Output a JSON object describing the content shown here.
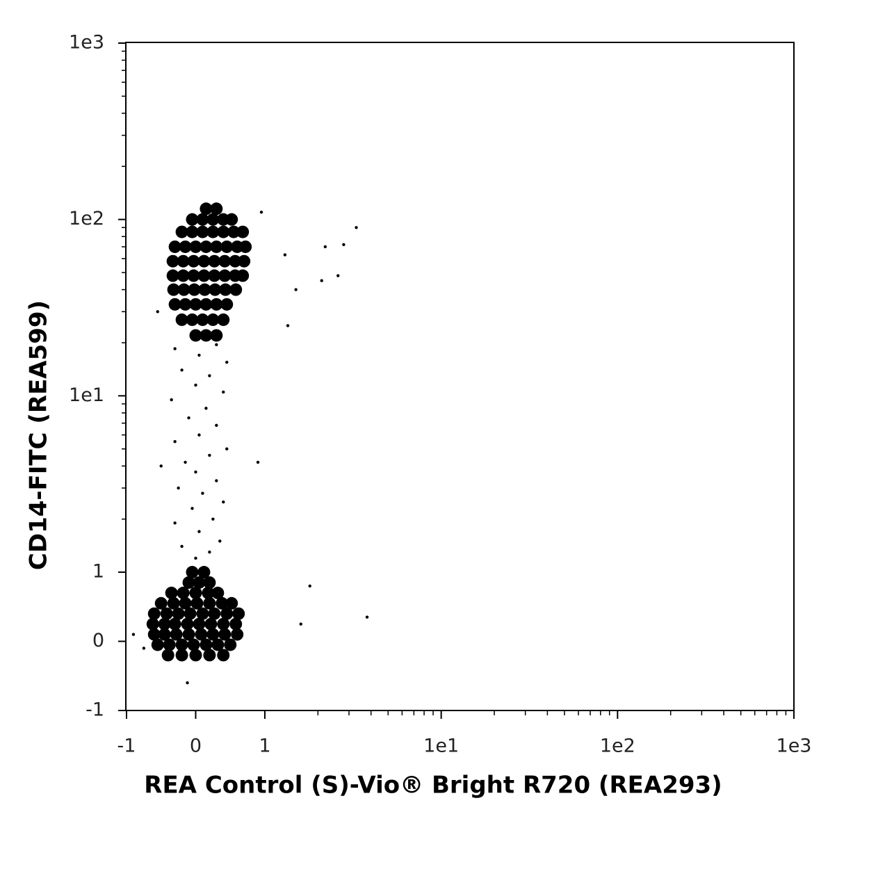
{
  "chart_data": {
    "type": "scatter",
    "x_label": "REA Control (S)-Vio® Bright R720 (REA293)",
    "y_label": "CD14-FITC (REA599)",
    "xscale": "biexponential",
    "yscale": "biexponential",
    "xlim": [
      -1,
      1000
    ],
    "ylim": [
      -1,
      1000
    ],
    "xticks": [
      -1,
      0,
      1,
      {
        "value": 10,
        "label": "1e1"
      },
      {
        "value": 100,
        "label": "1e2"
      },
      {
        "value": 1000,
        "label": "1e3"
      }
    ],
    "yticks": [
      -1,
      0,
      1,
      {
        "value": 10,
        "label": "1e1"
      },
      {
        "value": 100,
        "label": "1e2"
      },
      {
        "value": 1000,
        "label": "1e3"
      }
    ],
    "minor_ticks": [
      2,
      3,
      4,
      5,
      6,
      7,
      8,
      9,
      20,
      30,
      40,
      50,
      60,
      70,
      80,
      90,
      200,
      300,
      400,
      500,
      600,
      700,
      800,
      900
    ],
    "series": [
      {
        "color": "#000000",
        "marker_size": 9,
        "x": [
          -0.4,
          -0.2,
          0,
          0.2,
          0.4,
          -0.55,
          -0.38,
          -0.2,
          -0.03,
          0.15,
          0.32,
          0.5,
          -0.6,
          -0.45,
          -0.28,
          -0.1,
          0.08,
          0.25,
          0.42,
          0.6,
          -0.62,
          -0.45,
          -0.3,
          -0.12,
          0.05,
          0.22,
          0.4,
          0.58,
          -0.6,
          -0.42,
          -0.25,
          -0.08,
          0.1,
          0.27,
          0.45,
          0.62,
          -0.5,
          -0.32,
          -0.15,
          0.02,
          0.2,
          0.38,
          0.52,
          -0.35,
          -0.18,
          0,
          0.18,
          0.32,
          -0.1,
          0.05,
          0.2,
          -0.05,
          0.12,
          0,
          0.15,
          0.3,
          -0.2,
          -0.05,
          0.1,
          0.25,
          0.4,
          -0.3,
          -0.15,
          0,
          0.15,
          0.3,
          0.45,
          -0.32,
          -0.17,
          -0.02,
          0.13,
          0.28,
          0.43,
          0.58,
          -0.33,
          -0.18,
          -0.03,
          0.12,
          0.27,
          0.42,
          0.57,
          0.68,
          -0.33,
          -0.18,
          -0.03,
          0.12,
          0.27,
          0.42,
          0.57,
          0.7,
          -0.3,
          -0.15,
          0,
          0.15,
          0.3,
          0.45,
          0.6,
          0.72,
          -0.2,
          -0.05,
          0.1,
          0.25,
          0.4,
          0.55,
          0.68,
          -0.05,
          0.1,
          0.25,
          0.4,
          0.52,
          0.15,
          0.3
        ],
        "y": [
          -0.2,
          -0.2,
          -0.2,
          -0.2,
          -0.2,
          -0.05,
          -0.05,
          -0.05,
          -0.05,
          -0.05,
          -0.05,
          -0.05,
          0.1,
          0.1,
          0.1,
          0.1,
          0.1,
          0.1,
          0.1,
          0.1,
          0.25,
          0.25,
          0.25,
          0.25,
          0.25,
          0.25,
          0.25,
          0.25,
          0.4,
          0.4,
          0.4,
          0.4,
          0.4,
          0.4,
          0.4,
          0.4,
          0.55,
          0.55,
          0.55,
          0.55,
          0.55,
          0.55,
          0.55,
          0.7,
          0.7,
          0.7,
          0.7,
          0.7,
          0.85,
          0.85,
          0.85,
          1,
          1,
          22,
          22,
          22,
          27,
          27,
          27,
          27,
          27,
          33,
          33,
          33,
          33,
          33,
          33,
          40,
          40,
          40,
          40,
          40,
          40,
          40,
          48,
          48,
          48,
          48,
          48,
          48,
          48,
          48,
          58,
          58,
          58,
          58,
          58,
          58,
          58,
          58,
          70,
          70,
          70,
          70,
          70,
          70,
          70,
          70,
          85,
          85,
          85,
          85,
          85,
          85,
          85,
          100,
          100,
          100,
          100,
          100,
          115,
          115
        ]
      },
      {
        "color": "#000000",
        "marker_size": 2.2,
        "x": [
          0,
          0.2,
          -0.2,
          0.35,
          0.05,
          -0.3,
          0.25,
          -0.05,
          0.4,
          0.1,
          -0.25,
          0.3,
          0,
          -0.15,
          0.2,
          0.45,
          -0.3,
          0.05,
          0.3,
          -0.1,
          0.15,
          -0.35,
          0.4,
          0,
          0.2,
          -0.2,
          0.45,
          0.05,
          -0.3,
          0.3,
          1.3,
          2.2,
          2.8,
          3.3,
          2.1,
          2.6,
          1.5,
          -0.5,
          0.9,
          1.8,
          3.8,
          1.6,
          -0.9,
          -0.75,
          -0.12,
          0.95,
          -0.55,
          1.35
        ],
        "y": [
          1.2,
          1.3,
          1.4,
          1.5,
          1.7,
          1.9,
          2,
          2.3,
          2.5,
          2.8,
          3,
          3.3,
          3.7,
          4.2,
          4.6,
          5,
          5.5,
          6,
          6.8,
          7.5,
          8.5,
          9.5,
          10.5,
          11.5,
          13,
          14,
          15.5,
          17,
          18.5,
          19.5,
          63,
          70,
          72,
          90,
          45,
          48,
          40,
          4,
          4.2,
          0.8,
          0.35,
          0.25,
          0.1,
          -0.1,
          -0.6,
          110,
          30,
          25
        ]
      }
    ]
  }
}
